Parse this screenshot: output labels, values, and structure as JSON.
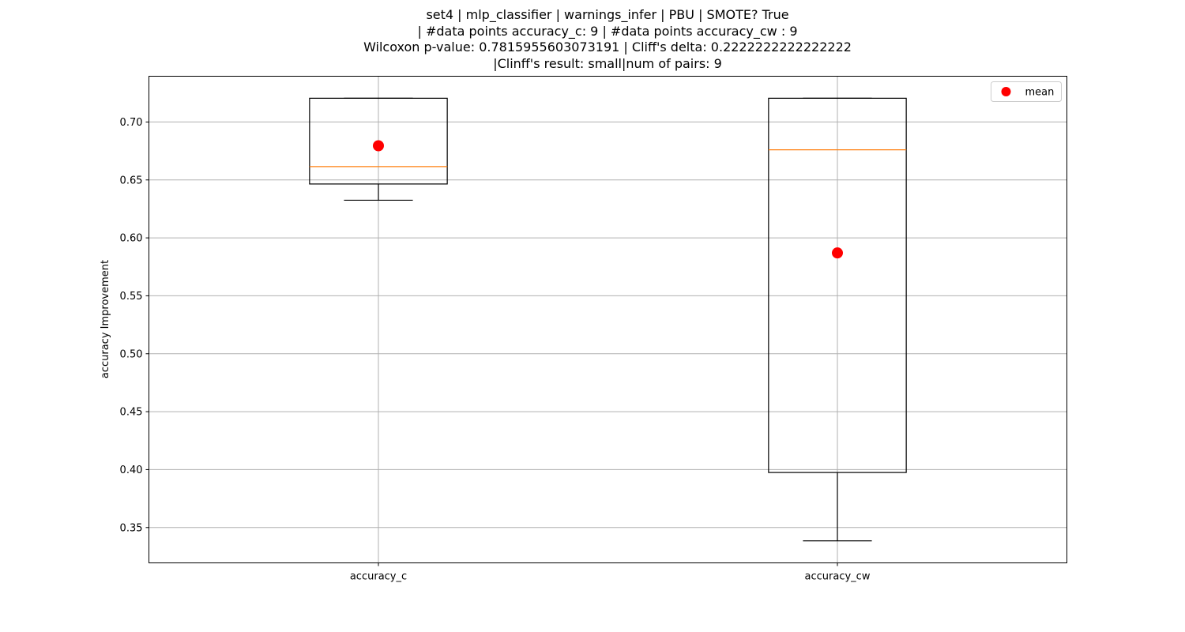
{
  "chart_data": {
    "type": "box",
    "title_lines": [
      "set4 | mlp_classifier | warnings_infer | PBU | SMOTE? True",
      "| #data points accuracy_c: 9 | #data points accuracy_cw : 9",
      "Wilcoxon p-value: 0.7815955603073191 | Cliff's delta: 0.2222222222222222",
      "|Clinff's result: small|num of pairs: 9"
    ],
    "xlabel": "",
    "ylabel": "accuracy Improvement",
    "ylim": [
      0.3195,
      0.7395
    ],
    "yticks": [
      0.35,
      0.4,
      0.45,
      0.5,
      0.55,
      0.6,
      0.65,
      0.7
    ],
    "ytick_labels": [
      "0.35",
      "0.40",
      "0.45",
      "0.50",
      "0.55",
      "0.60",
      "0.65",
      "0.70"
    ],
    "grid": true,
    "legend": {
      "placement": "top-right",
      "entries": [
        {
          "label": "mean",
          "color": "#ff0000"
        }
      ]
    },
    "colors": {
      "box": "#000000",
      "median": "#ff7f0e",
      "mean": "#ff0000",
      "grid": "#b0b0b0"
    },
    "boxes": [
      {
        "label": "accuracy_c",
        "whisker_low": 0.6325,
        "q1": 0.6465,
        "median": 0.6615,
        "q3": 0.7205,
        "whisker_high": 0.7205,
        "mean": 0.6795
      },
      {
        "label": "accuracy_cw",
        "whisker_low": 0.3385,
        "q1": 0.3975,
        "median": 0.676,
        "q3": 0.7205,
        "whisker_high": 0.7205,
        "mean": 0.587
      }
    ]
  }
}
